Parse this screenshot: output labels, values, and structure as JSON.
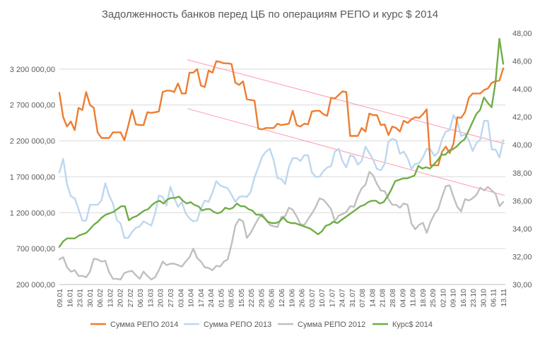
{
  "chart_data": {
    "type": "line",
    "title": "Задолженность банков перед ЦБ по операциям РЕПО и курс $ 2014",
    "y_left": {
      "ylim": [
        200000,
        3700000
      ],
      "ticks": [
        200000,
        700000,
        1200000,
        1700000,
        2200000,
        2700000,
        3200000
      ],
      "tick_labels": [
        "200 000,00",
        "700 000,00",
        "1 200 000,00",
        "1 700 000,00",
        "2 200 000,00",
        "2 700 000,00",
        "3 200 000,00"
      ]
    },
    "y_right": {
      "ylim": [
        30,
        48
      ],
      "ticks": [
        30,
        32,
        34,
        36,
        38,
        40,
        42,
        44,
        46,
        48
      ],
      "tick_labels": [
        "30,00",
        "32,00",
        "34,00",
        "36,00",
        "38,00",
        "40,00",
        "42,00",
        "44,00",
        "46,00",
        "48,00"
      ]
    },
    "x_tick_labels": [
      "09.01",
      "16.01",
      "23.01",
      "30.01",
      "06.02",
      "13.02",
      "20.02",
      "27.02",
      "06.03",
      "13.03",
      "20.03",
      "27.03",
      "03.04",
      "10.04",
      "17.04",
      "24.04",
      "01.05",
      "08.05",
      "15.05",
      "22.05",
      "29.05",
      "05.06",
      "12.06",
      "19.06",
      "26.06",
      "03.07",
      "10.07",
      "17.07",
      "24.07",
      "31.07",
      "07.08",
      "14.08",
      "21.08",
      "28.08",
      "04.09",
      "11.09",
      "18.09",
      "25.09",
      "02.10",
      "09.10",
      "16.10",
      "23.10",
      "30.10",
      "06.11",
      "13.11"
    ],
    "grid": true,
    "legend_position": "bottom",
    "series": [
      {
        "name": "Сумма РЕПО 2014",
        "color": "#ED7D31",
        "axis": "left",
        "values": [
          2870000,
          2530000,
          2400000,
          2470000,
          2350000,
          2660000,
          2630000,
          2880000,
          2700000,
          2660000,
          2320000,
          2240000,
          2240000,
          2240000,
          2320000,
          2320000,
          2320000,
          2210000,
          2410000,
          2630000,
          2430000,
          2420000,
          2420000,
          2600000,
          2590000,
          2600000,
          2610000,
          2880000,
          2900000,
          2900000,
          2880000,
          3000000,
          2860000,
          2860000,
          3150000,
          3150000,
          3200000,
          2970000,
          2950000,
          3180000,
          3150000,
          3310000,
          3300000,
          3280000,
          3280000,
          3270000,
          3010000,
          2980000,
          3030000,
          2780000,
          2770000,
          2760000,
          2370000,
          2360000,
          2380000,
          2380000,
          2380000,
          2440000,
          2420000,
          2430000,
          2440000,
          2620000,
          2420000,
          2400000,
          2440000,
          2430000,
          2610000,
          2620000,
          2620000,
          2570000,
          2550000,
          2800000,
          2790000,
          2840000,
          2890000,
          2880000,
          2270000,
          2270000,
          2270000,
          2380000,
          2330000,
          2580000,
          2560000,
          2560000,
          2420000,
          2430000,
          2280000,
          2400000,
          2380000,
          2330000,
          2480000,
          2450000,
          2500000,
          2530000,
          2520000,
          2570000,
          2640000,
          1860000,
          1860000,
          1860000,
          2050000,
          2120000,
          2030000,
          2160000,
          2530000,
          2520000,
          2600000,
          2800000,
          2860000,
          2860000,
          2860000,
          2910000,
          2930000,
          3010000,
          3030000,
          3040000,
          3210000
        ]
      },
      {
        "name": "Сумма РЕПО 2013",
        "color": "#BDD7EE",
        "axis": "left",
        "values": [
          1760000,
          1950000,
          1600000,
          1430000,
          1400000,
          1250000,
          1090000,
          1090000,
          1310000,
          1310000,
          1310000,
          1370000,
          1610000,
          1440000,
          1330000,
          1100000,
          1050000,
          850000,
          850000,
          930000,
          990000,
          1010000,
          1080000,
          1050000,
          1020000,
          1180000,
          1440000,
          1420000,
          1300000,
          1560000,
          1410000,
          1280000,
          1350000,
          1190000,
          1120000,
          1080000,
          1090000,
          1260000,
          1370000,
          1350000,
          1480000,
          1640000,
          1580000,
          1560000,
          1540000,
          1450000,
          1350000,
          1420000,
          1430000,
          1420000,
          1490000,
          1690000,
          1830000,
          1980000,
          2050000,
          2090000,
          1930000,
          1680000,
          1670000,
          1600000,
          1840000,
          1960000,
          1960000,
          1920000,
          2000000,
          2000000,
          1760000,
          1700000,
          1700000,
          1780000,
          1830000,
          1850000,
          2050000,
          2090000,
          1920000,
          1830000,
          2000000,
          1980000,
          1870000,
          1920000,
          2120000,
          2030000,
          1940000,
          1810000,
          1790000,
          1880000,
          2190000,
          2230000,
          2210000,
          2020000,
          2050000,
          1960000,
          1810000,
          1880000,
          1890000,
          1970000,
          2090000,
          2080000,
          1990000,
          2040000,
          2220000,
          2330000,
          2350000,
          2560000,
          2470000,
          2270000,
          2290000,
          2210000,
          2060000,
          2170000,
          2220000,
          2480000,
          2480000,
          2080000,
          2080000,
          1970000,
          2210000
        ]
      },
      {
        "name": "Сумма РЕПО 2012",
        "color": "#BFBFBF",
        "axis": "left",
        "values": [
          550000,
          580000,
          440000,
          380000,
          400000,
          320000,
          320000,
          300000,
          380000,
          560000,
          550000,
          520000,
          530000,
          370000,
          280000,
          280000,
          270000,
          360000,
          380000,
          390000,
          330000,
          280000,
          380000,
          320000,
          270000,
          300000,
          400000,
          520000,
          470000,
          490000,
          490000,
          470000,
          450000,
          520000,
          580000,
          700000,
          570000,
          520000,
          440000,
          430000,
          400000,
          460000,
          450000,
          520000,
          550000,
          760000,
          1020000,
          1110000,
          1080000,
          850000,
          920000,
          1020000,
          1120000,
          1180000,
          1100000,
          1030000,
          1010000,
          1000000,
          1140000,
          1150000,
          1270000,
          1240000,
          1150000,
          1040000,
          1030000,
          1110000,
          1190000,
          1280000,
          1400000,
          1380000,
          1320000,
          1250000,
          1080000,
          1160000,
          1180000,
          1210000,
          1290000,
          1280000,
          1430000,
          1540000,
          1590000,
          1770000,
          1720000,
          1600000,
          1510000,
          1500000,
          1390000,
          1310000,
          1310000,
          1270000,
          1330000,
          1310000,
          1050000,
          970000,
          1030000,
          1060000,
          920000,
          1070000,
          1180000,
          1250000,
          1420000,
          1570000,
          1580000,
          1420000,
          1280000,
          1220000,
          1390000,
          1370000,
          1400000,
          1450000,
          1550000,
          1510000,
          1560000,
          1510000,
          1460000,
          1290000,
          1350000
        ]
      },
      {
        "name": "Курс$ 2014",
        "color": "#70AD47",
        "axis": "right",
        "values": [
          32.7,
          33.1,
          33.3,
          33.3,
          33.3,
          33.5,
          33.6,
          33.7,
          34.0,
          34.3,
          34.5,
          34.8,
          35.0,
          35.1,
          35.2,
          35.4,
          35.6,
          35.6,
          34.6,
          34.8,
          34.9,
          35.1,
          35.3,
          35.4,
          35.7,
          35.9,
          36.0,
          35.8,
          36.1,
          36.2,
          36.2,
          36.3,
          36.0,
          35.8,
          35.9,
          35.7,
          35.6,
          35.3,
          35.4,
          35.4,
          35.2,
          35.1,
          35.2,
          35.5,
          35.4,
          35.5,
          35.8,
          35.6,
          35.6,
          35.4,
          35.3,
          35.0,
          35.0,
          34.8,
          34.5,
          34.4,
          34.4,
          34.5,
          34.8,
          34.5,
          34.4,
          34.4,
          34.3,
          34.2,
          34.1,
          34.0,
          33.8,
          33.6,
          33.8,
          34.2,
          34.3,
          34.5,
          34.4,
          34.6,
          34.8,
          35.0,
          35.2,
          35.4,
          35.6,
          35.7,
          35.9,
          36.0,
          36.0,
          35.8,
          35.9,
          36.3,
          36.8,
          37.4,
          37.5,
          37.6,
          37.6,
          37.7,
          37.8,
          38.5,
          38.3,
          38.4,
          38.3,
          38.6,
          38.9,
          39.3,
          39.3,
          39.6,
          39.7,
          39.9,
          40.2,
          40.4,
          41.0,
          41.6,
          42.2,
          42.5,
          43.4,
          43.0,
          42.7,
          44.5,
          47.6,
          45.8
        ]
      }
    ],
    "trend_lines": {
      "color": "#FF99AA",
      "note": "two parallel downward trend lines across the 2014 RUB REPO series"
    }
  },
  "legend": {
    "items": [
      {
        "label": "Сумма РЕПО 2014",
        "color": "#ED7D31"
      },
      {
        "label": "Сумма РЕПО 2013",
        "color": "#BDD7EE"
      },
      {
        "label": "Сумма РЕПО 2012",
        "color": "#BFBFBF"
      },
      {
        "label": "Курс$ 2014",
        "color": "#70AD47"
      }
    ]
  }
}
